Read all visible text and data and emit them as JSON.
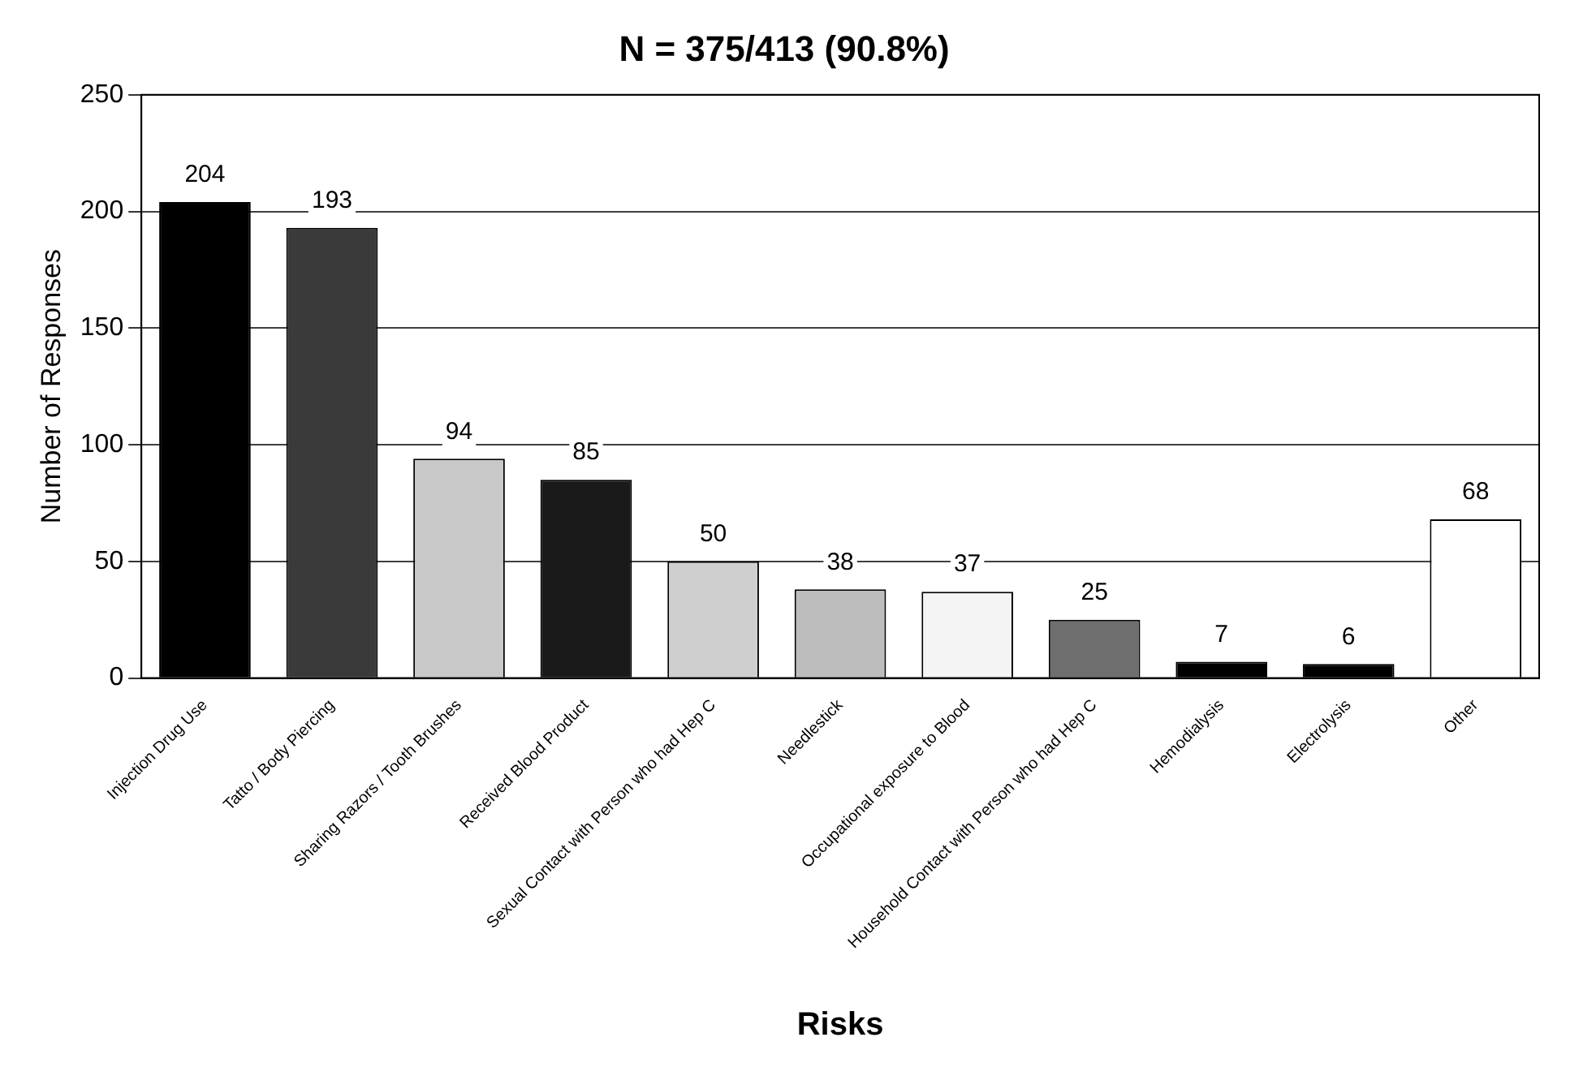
{
  "chart_data": {
    "type": "bar",
    "title": "N = 375/413 (90.8%)",
    "xlabel": "Risks",
    "ylabel": "Number of Responses",
    "categories": [
      "Injection Drug Use",
      "Tatto / Body Piercing",
      "Sharing Razors / Tooth Brushes",
      "Received Blood Product",
      "Sexual Contact with Person who had Hep C",
      "Needlestick",
      "Occupational exposure to Blood",
      "Household Contact with Person who had Hep C",
      "Hemodialysis",
      "Electrolysis",
      "Other"
    ],
    "values": [
      204,
      193,
      94,
      85,
      50,
      38,
      37,
      25,
      7,
      6,
      68
    ],
    "colors": [
      "#000000",
      "#3a3a3a",
      "#c8c8c8",
      "#1a1a1a",
      "#cfcfcf",
      "#bdbdbd",
      "#f4f4f4",
      "#6e6e6e",
      "#000000",
      "#000000",
      "#ffffff"
    ],
    "ylim": [
      0,
      250
    ],
    "yticks": [
      0,
      50,
      100,
      150,
      200,
      250
    ],
    "grid": "y",
    "data_labels": true,
    "legend": false
  }
}
